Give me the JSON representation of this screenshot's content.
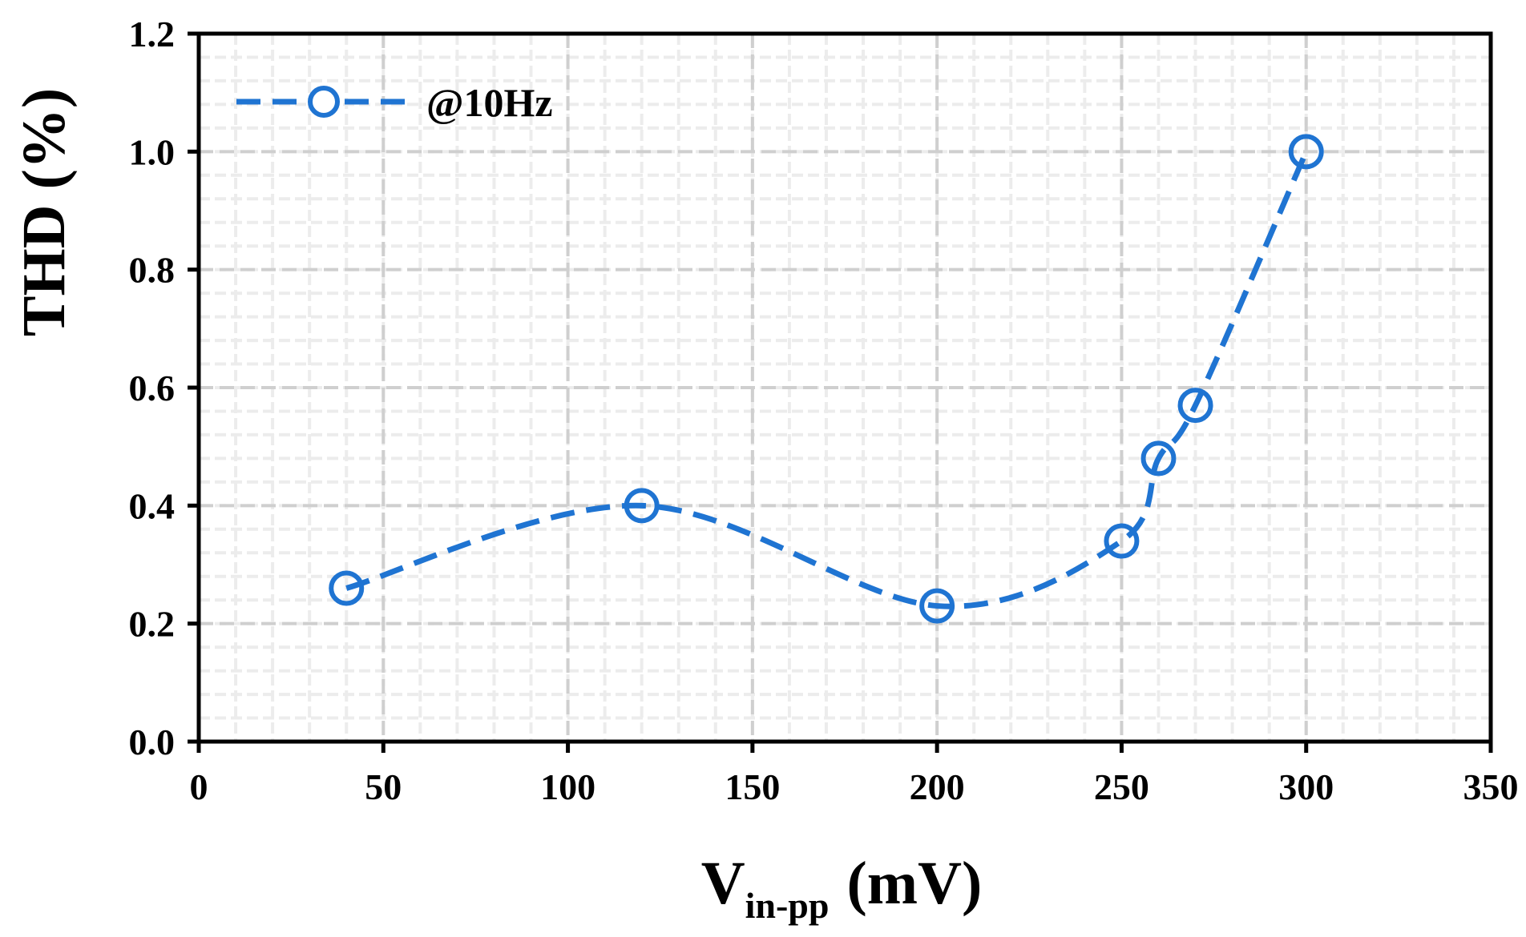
{
  "chart_data": {
    "type": "line",
    "title": "",
    "xlabel": {
      "main": "V",
      "subscript": "in-pp",
      "unit": "(mV)"
    },
    "ylabel": "THD (%)",
    "xlim": [
      0,
      350
    ],
    "ylim": [
      0,
      1.2
    ],
    "x_major_ticks": [
      0,
      50,
      100,
      150,
      200,
      250,
      300,
      350
    ],
    "y_major_ticks": [
      0.0,
      0.2,
      0.4,
      0.6,
      0.8,
      1.0,
      1.2
    ],
    "x_tick_labels": [
      "0",
      "50",
      "100",
      "150",
      "200",
      "250",
      "300",
      "350"
    ],
    "y_tick_labels": [
      "0.0",
      "0.2",
      "0.4",
      "0.6",
      "0.8",
      "1.0",
      "1.2"
    ],
    "x_minor_step": 10,
    "y_minor_step": 0.04,
    "grid": true,
    "legend_position": "top-left",
    "series": [
      {
        "name": "@10Hz",
        "color": "#1F74D2",
        "line_style": "dashed",
        "marker": "open-circle",
        "smooth": true,
        "x": [
          40,
          120,
          200,
          250,
          260,
          270,
          300
        ],
        "y": [
          0.26,
          0.4,
          0.23,
          0.34,
          0.48,
          0.57,
          1.0
        ]
      }
    ]
  }
}
